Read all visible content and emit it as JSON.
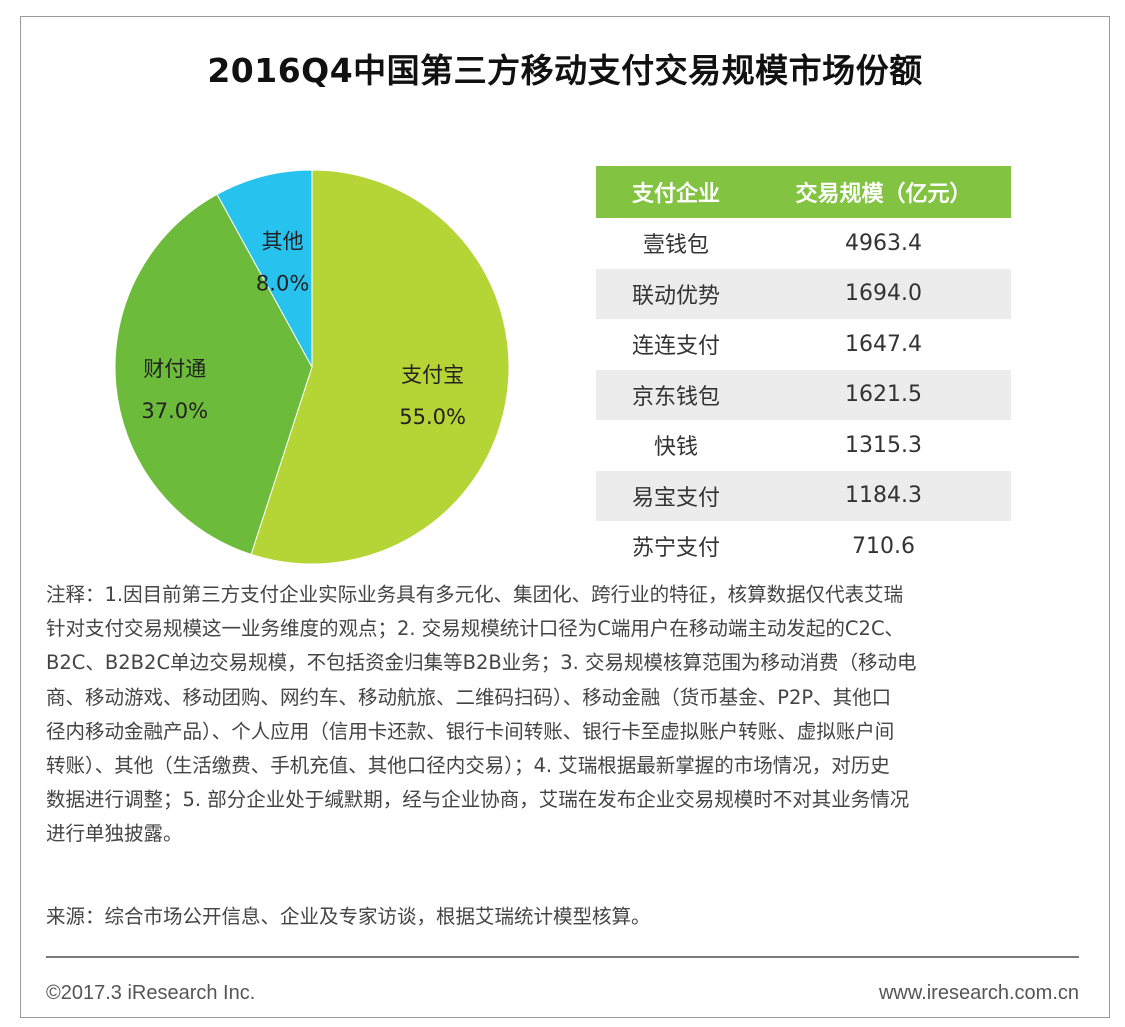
{
  "title": "2016Q4中国第三方移动支付交易规模市场份额",
  "chart_data": {
    "type": "pie",
    "title": "2016Q4中国第三方移动支付交易规模市场份额",
    "slices": [
      {
        "label": "支付宝",
        "value": 55.0,
        "value_text": "55.0%",
        "color": "#b5d435"
      },
      {
        "label": "财付通",
        "value": 37.0,
        "value_text": "37.0%",
        "color": "#6dbb3b"
      },
      {
        "label": "其他",
        "value": 8.0,
        "value_text": "8.0%",
        "color": "#28c2ee"
      }
    ],
    "start": "12 o'clock",
    "direction": "clockwise",
    "legend": "none"
  },
  "table": {
    "headers": [
      "支付企业",
      "交易规模（亿元）"
    ],
    "header_color": "#82c341",
    "rows": [
      {
        "company": "壹钱包",
        "volume": "4963.4"
      },
      {
        "company": "联动优势",
        "volume": "1694.0"
      },
      {
        "company": "连连支付",
        "volume": "1647.4"
      },
      {
        "company": "京东钱包",
        "volume": "1621.5"
      },
      {
        "company": "快钱",
        "volume": "1315.3"
      },
      {
        "company": "易宝支付",
        "volume": "1184.3"
      },
      {
        "company": "苏宁支付",
        "volume": "710.6"
      }
    ]
  },
  "notes": [
    "注释：1.因目前第三方支付企业实际业务具有多元化、集团化、跨行业的特征，核算数据仅代表艾瑞",
    "针对支付交易规模这一业务维度的观点；2. 交易规模统计口径为C端用户在移动端主动发起的C2C、",
    "B2C、B2B2C单边交易规模，不包括资金归集等B2B业务；3. 交易规模核算范围为移动消费（移动电",
    "商、移动游戏、移动团购、网约车、移动航旅、二维码扫码）、移动金融（货币基金、P2P、其他口",
    "径内移动金融产品）、个人应用（信用卡还款、银行卡间转账、银行卡至虚拟账户转账、虚拟账户间",
    "转账）、其他（生活缴费、手机充值、其他口径内交易）；4. 艾瑞根据最新掌握的市场情况，对历史",
    "数据进行调整；5. 部分企业处于缄默期，经与企业协商，艾瑞在发布企业交易规模时不对其业务情况",
    "进行单独披露。"
  ],
  "source": "来源：综合市场公开信息、企业及专家访谈，根据艾瑞统计模型核算。",
  "footer": {
    "copyright": "©2017.3 iResearch Inc.",
    "website": "www.iresearch.com.cn"
  }
}
